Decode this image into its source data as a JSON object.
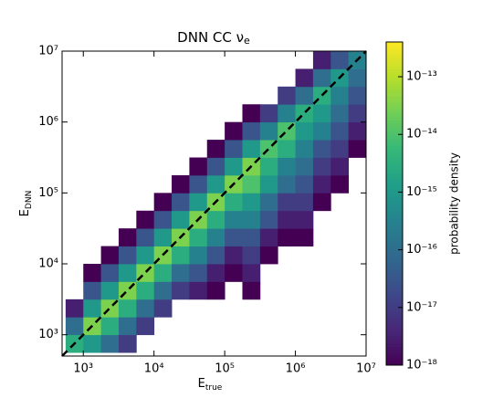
{
  "chart_data": {
    "type": "hist2d",
    "title": {
      "text": "DNN CC ν",
      "sub": "e"
    },
    "xlabel": {
      "text": "E",
      "sub": "true"
    },
    "ylabel": {
      "text": "E",
      "sub": "DNN"
    },
    "colorbar_label": "probability density",
    "colormap": "viridis",
    "log_x": true,
    "log_y": true,
    "log_color": true,
    "identity_line": true,
    "xlim": [
      501,
      10000000
    ],
    "ylim": [
      501,
      10000000
    ],
    "xticks": [
      {
        "value": 1000,
        "label": "10³"
      },
      {
        "value": 10000,
        "label": "10⁴"
      },
      {
        "value": 100000,
        "label": "10⁵"
      },
      {
        "value": 1000000,
        "label": "10⁶"
      },
      {
        "value": 10000000,
        "label": "10⁷"
      }
    ],
    "yticks": [
      {
        "value": 1000,
        "label": "10³"
      },
      {
        "value": 10000,
        "label": "10⁴"
      },
      {
        "value": 100000,
        "label": "10⁵"
      },
      {
        "value": 1000000,
        "label": "10⁶"
      },
      {
        "value": 10000000,
        "label": "10⁷"
      }
    ],
    "clim": [
      1e-18,
      4e-13
    ],
    "cticks": [
      {
        "value": 1e-18,
        "label": "10⁻¹⁸"
      },
      {
        "value": 1e-17,
        "label": "10⁻¹⁷"
      },
      {
        "value": 1e-16,
        "label": "10⁻¹⁶"
      },
      {
        "value": 1e-15,
        "label": "10⁻¹⁵"
      },
      {
        "value": 1e-14,
        "label": "10⁻¹⁴"
      },
      {
        "value": 1e-13,
        "label": "10⁻¹³"
      }
    ],
    "xbins": [
      562,
      1000,
      1778,
      3162,
      5623,
      10000,
      17783,
      31623,
      56234,
      100000,
      177828,
      316228,
      562341,
      1000000,
      1778279,
      3162278,
      5623413,
      10000000
    ],
    "ybins": [
      562,
      1000,
      1778,
      3162,
      5623,
      10000,
      17783,
      31623,
      56234,
      100000,
      177828,
      316228,
      562341,
      1000000,
      1778279,
      3162278,
      5623413,
      10000000
    ],
    "z": [
      [
        3e-15,
        1e-15,
        1e-16,
        1e-17,
        null,
        null,
        null,
        null,
        null,
        null,
        null,
        null,
        null,
        null,
        null,
        null,
        null
      ],
      [
        1e-16,
        3e-14,
        3e-15,
        1e-16,
        1e-17,
        null,
        null,
        null,
        null,
        null,
        null,
        null,
        null,
        null,
        null,
        null,
        null
      ],
      [
        3e-18,
        1e-15,
        3e-14,
        3e-15,
        1e-16,
        1e-17,
        null,
        null,
        null,
        null,
        null,
        null,
        null,
        null,
        null,
        null,
        null
      ],
      [
        null,
        3e-17,
        1e-15,
        3e-14,
        3e-15,
        1e-16,
        1e-17,
        3e-18,
        1e-18,
        null,
        1e-18,
        null,
        null,
        null,
        null,
        null,
        null
      ],
      [
        null,
        1e-18,
        3e-17,
        1e-15,
        3e-14,
        3e-15,
        1e-16,
        3e-17,
        3e-18,
        1e-18,
        3e-18,
        null,
        null,
        null,
        null,
        null,
        null
      ],
      [
        null,
        null,
        1e-18,
        3e-17,
        1e-15,
        3e-14,
        3e-15,
        3e-16,
        3e-17,
        3e-18,
        1e-17,
        1e-18,
        null,
        null,
        null,
        null,
        null
      ],
      [
        null,
        null,
        null,
        1e-18,
        3e-17,
        1e-15,
        3e-14,
        3e-15,
        3e-16,
        3e-17,
        3e-17,
        3e-18,
        1e-18,
        1e-18,
        null,
        null,
        null
      ],
      [
        null,
        null,
        null,
        null,
        1e-18,
        3e-17,
        1e-15,
        3e-14,
        3e-15,
        3e-16,
        3e-16,
        3e-17,
        3e-18,
        3e-18,
        null,
        null,
        null
      ],
      [
        null,
        null,
        null,
        null,
        null,
        1e-18,
        3e-17,
        1e-15,
        3e-14,
        3e-15,
        1e-15,
        1e-16,
        1e-17,
        1e-17,
        1e-18,
        null,
        null
      ],
      [
        null,
        null,
        null,
        null,
        null,
        null,
        1e-18,
        3e-17,
        1e-15,
        3e-14,
        1e-14,
        1e-15,
        1e-16,
        3e-17,
        3e-18,
        1e-18,
        null
      ],
      [
        null,
        null,
        null,
        null,
        null,
        null,
        null,
        1e-18,
        3e-17,
        1e-15,
        3e-14,
        3e-15,
        3e-16,
        1e-16,
        1e-17,
        3e-18,
        null
      ],
      [
        null,
        null,
        null,
        null,
        null,
        null,
        null,
        null,
        1e-18,
        3e-17,
        1e-15,
        1e-14,
        3e-15,
        3e-16,
        3e-17,
        1e-17,
        1e-18
      ],
      [
        null,
        null,
        null,
        null,
        null,
        null,
        null,
        null,
        null,
        1e-18,
        3e-17,
        3e-16,
        1e-14,
        1e-15,
        3e-16,
        3e-17,
        3e-18
      ],
      [
        null,
        null,
        null,
        null,
        null,
        null,
        null,
        null,
        null,
        null,
        1e-18,
        1e-17,
        3e-16,
        3e-15,
        1e-15,
        1e-16,
        1e-17
      ],
      [
        null,
        null,
        null,
        null,
        null,
        null,
        null,
        null,
        null,
        null,
        null,
        null,
        1e-17,
        1e-16,
        3e-15,
        3e-16,
        3e-17
      ],
      [
        null,
        null,
        null,
        null,
        null,
        null,
        null,
        null,
        null,
        null,
        null,
        null,
        null,
        3e-18,
        1e-16,
        1e-15,
        1e-16
      ],
      [
        null,
        null,
        null,
        null,
        null,
        null,
        null,
        null,
        null,
        null,
        null,
        null,
        null,
        null,
        3e-18,
        3e-17,
        3e-16
      ]
    ]
  }
}
